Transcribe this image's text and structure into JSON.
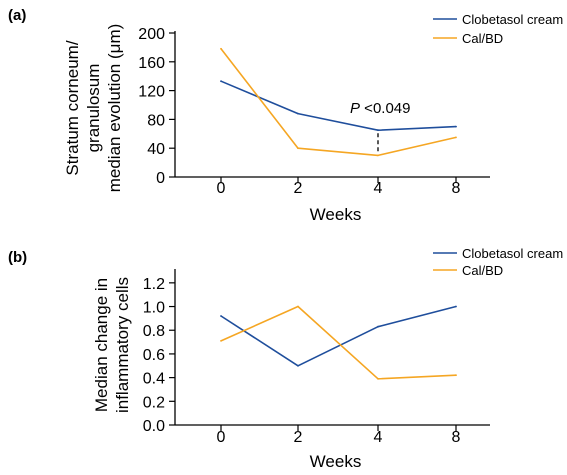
{
  "colors": {
    "clobetasol": "#1f4e9c",
    "calbd": "#f5a623",
    "axis": "#000000"
  },
  "chart_data": [
    {
      "panel_label": "(a)",
      "type": "line",
      "categories": [
        "0",
        "2",
        "4",
        "8"
      ],
      "xlabel": "Weeks",
      "ylabel_lines": [
        "Stratum corneum/",
        "granulosum",
        "median evolution (μm)"
      ],
      "ylim": [
        0,
        200
      ],
      "yticks": [
        0,
        40,
        80,
        120,
        160,
        200
      ],
      "ytick_labels": [
        "0",
        "40",
        "80",
        "120",
        "160",
        "200"
      ],
      "grid": false,
      "legend_position": "top-right",
      "series": [
        {
          "name": "Clobetasol cream",
          "color_key": "clobetasol",
          "values": [
            133,
            88,
            65,
            70
          ]
        },
        {
          "name": "Cal/BD",
          "color_key": "calbd",
          "values": [
            178,
            40,
            30,
            55
          ]
        }
      ],
      "annotation": {
        "italic_part": "P",
        "rest": " <0.049",
        "category_index": 2
      }
    },
    {
      "panel_label": "(b)",
      "type": "line",
      "categories": [
        "0",
        "2",
        "4",
        "8"
      ],
      "xlabel": "Weeks",
      "ylabel_lines": [
        "Median change in",
        "inflammatory cells"
      ],
      "ylim": [
        0,
        1.3
      ],
      "yticks": [
        0,
        0.2,
        0.4,
        0.6,
        0.8,
        1.0,
        1.2
      ],
      "ytick_labels": [
        "0.0",
        "0.2",
        "0.4",
        "0.6",
        "0.8",
        "1.0",
        "1.2"
      ],
      "grid": false,
      "legend_position": "top-right",
      "series": [
        {
          "name": "Clobetasol cream",
          "color_key": "clobetasol",
          "values": [
            0.92,
            0.5,
            0.83,
            1.0
          ]
        },
        {
          "name": "Cal/BD",
          "color_key": "calbd",
          "values": [
            0.71,
            1.0,
            0.39,
            0.42
          ]
        }
      ]
    }
  ]
}
